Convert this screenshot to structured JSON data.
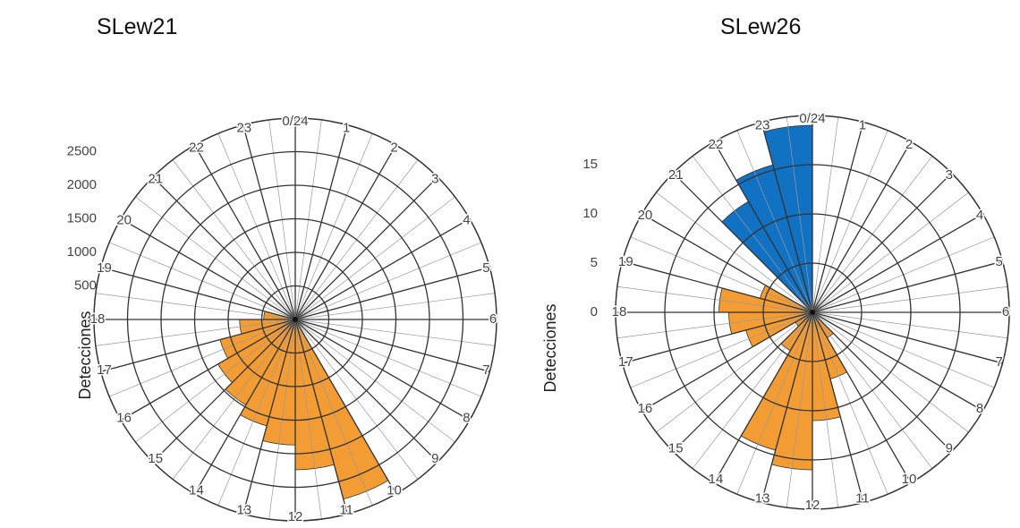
{
  "chart_data": [
    {
      "type": "polar_bar",
      "title": "SLew21",
      "ylabel": "Detecciones",
      "categories": [
        "0/24",
        "1",
        "2",
        "3",
        "4",
        "5",
        "6",
        "7",
        "8",
        "9",
        "10",
        "11",
        "12",
        "13",
        "14",
        "15",
        "16",
        "17",
        "18",
        "19",
        "20",
        "21",
        "22",
        "23"
      ],
      "series": [
        {
          "color": "#f39c33",
          "values": [
            0,
            0,
            0,
            0,
            0,
            0,
            0,
            0,
            0,
            0,
            2770,
            2240,
            1870,
            1640,
            1470,
            1330,
            1160,
            830,
            470,
            0,
            0,
            0,
            0,
            0
          ]
        }
      ],
      "rlim": [
        0,
        3000
      ],
      "rticks": [
        0,
        500,
        1000,
        1500,
        2000,
        2500
      ]
    },
    {
      "type": "polar_bar",
      "title": "SLew26",
      "ylabel": "Detecciones",
      "categories": [
        "0/24",
        "1",
        "2",
        "3",
        "4",
        "5",
        "6",
        "7",
        "8",
        "9",
        "10",
        "11",
        "12",
        "13",
        "14",
        "15",
        "16",
        "17",
        "18",
        "19",
        "20",
        "21",
        "22",
        "23"
      ],
      "series": [
        {
          "color": "#f39c33",
          "values": [
            0,
            0,
            0,
            0,
            0,
            0,
            0,
            0,
            0,
            3,
            7,
            11,
            16,
            14.5,
            4.5,
            2,
            7,
            8.5,
            9.5,
            5.5,
            0,
            0,
            0,
            0
          ]
        },
        {
          "color": "#1172c4",
          "values": [
            0,
            0,
            0,
            0,
            0,
            0,
            0,
            0,
            0,
            0,
            0,
            0,
            0,
            0,
            0,
            0,
            0,
            0,
            0,
            0,
            0,
            13,
            15.5,
            19
          ]
        }
      ],
      "rlim": [
        0,
        20
      ],
      "rticks": [
        0,
        5,
        10,
        15
      ]
    }
  ]
}
